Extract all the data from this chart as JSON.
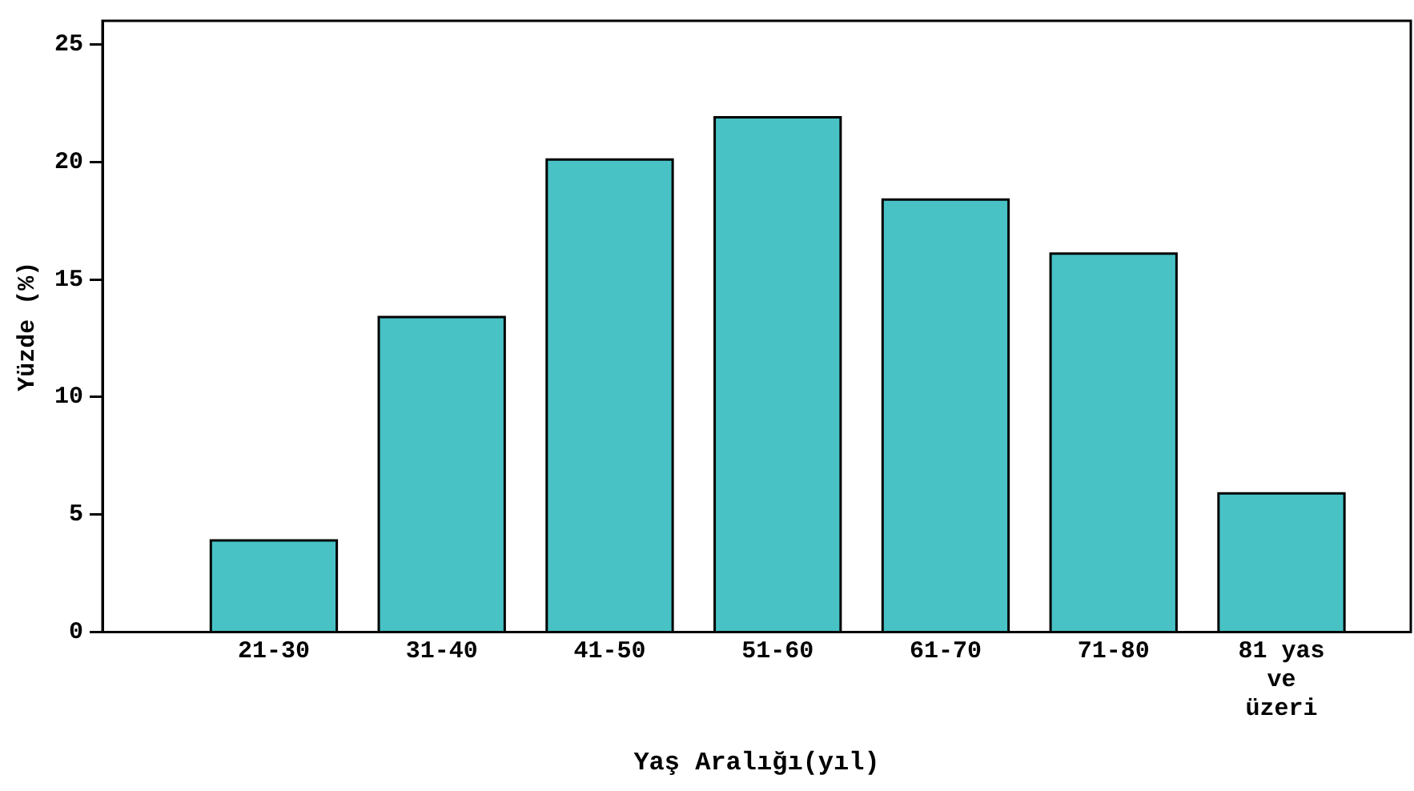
{
  "chart_data": {
    "type": "bar",
    "xlabel": "Yaş Aralığı(yıl)",
    "ylabel": "Yüzde (%)",
    "categories": [
      "21-30",
      "31-40",
      "41-50",
      "51-60",
      "61-70",
      "71-80",
      "81 yas ve üzeri"
    ],
    "values": [
      3.9,
      13.4,
      20.1,
      21.9,
      18.4,
      16.1,
      5.9
    ],
    "color": "#48c2c5",
    "ylim": [
      0,
      26
    ],
    "yticks": [
      0,
      5,
      10,
      15,
      20,
      25
    ],
    "grid": false,
    "legend": false
  }
}
